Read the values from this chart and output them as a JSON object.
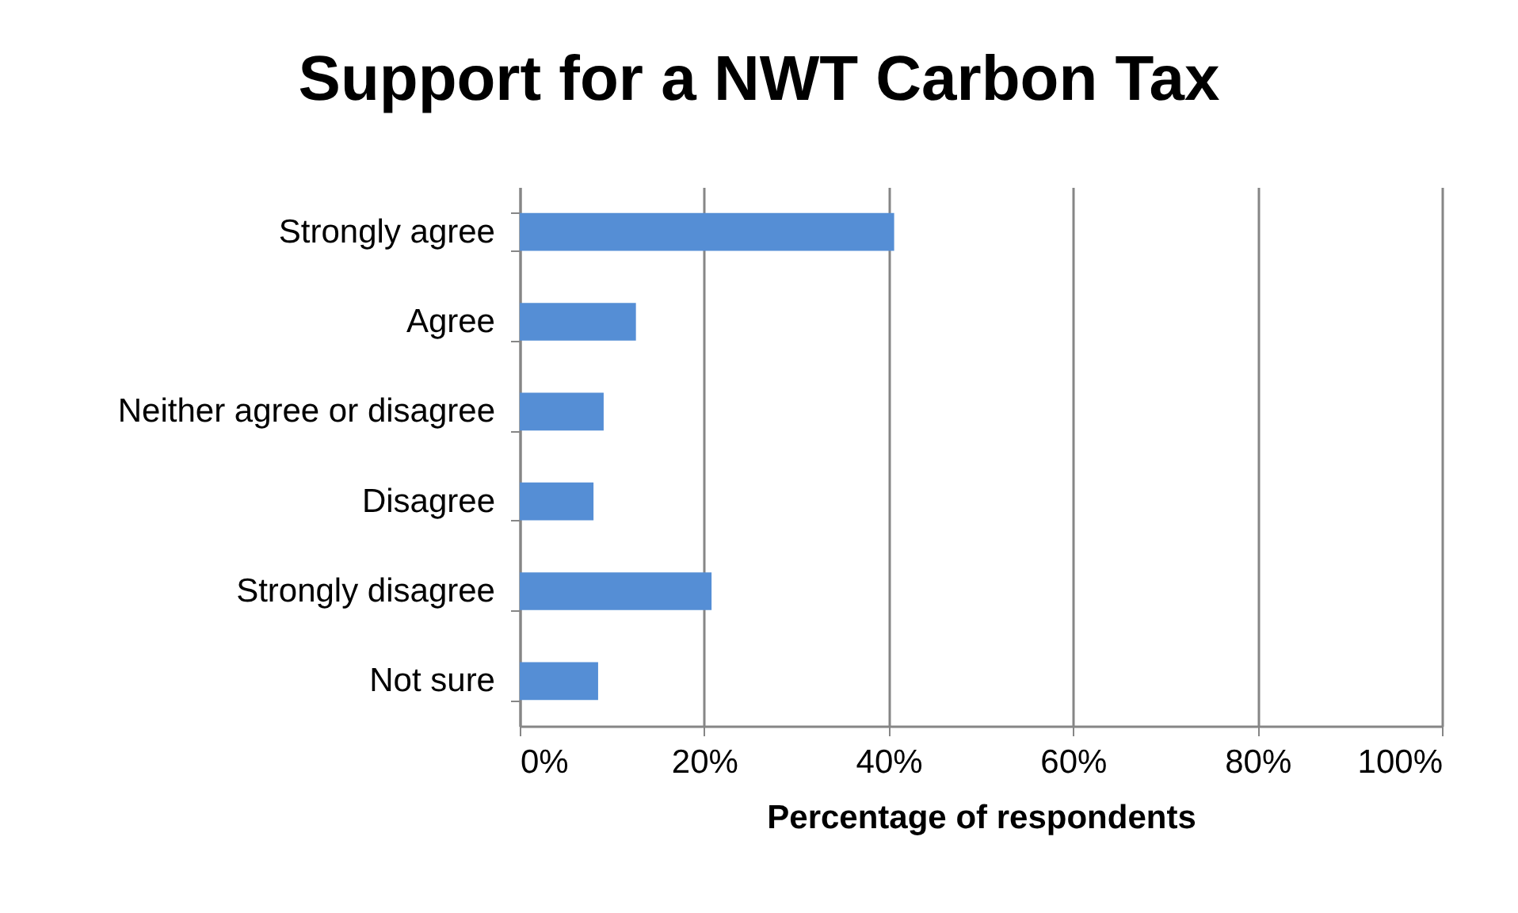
{
  "chart_data": {
    "type": "bar",
    "orientation": "horizontal",
    "title": "Support for a NWT Carbon Tax",
    "xlabel": "Percentage of respondents",
    "categories": [
      "Strongly agree",
      "Agree",
      "Neither agree or disagree",
      "Disagree",
      "Strongly disagree",
      "Not sure"
    ],
    "values": [
      40.6,
      12.6,
      9.1,
      8.0,
      20.8,
      8.5
    ],
    "color": "#558ed5",
    "xlim": [
      0,
      100
    ],
    "xticks": [
      {
        "value": 0,
        "label": "0%"
      },
      {
        "value": 20,
        "label": "20%"
      },
      {
        "value": 40,
        "label": "40%"
      },
      {
        "value": 60,
        "label": "60%"
      },
      {
        "value": 80,
        "label": "80%"
      },
      {
        "value": 100,
        "label": "100%"
      }
    ],
    "grid": "x"
  }
}
